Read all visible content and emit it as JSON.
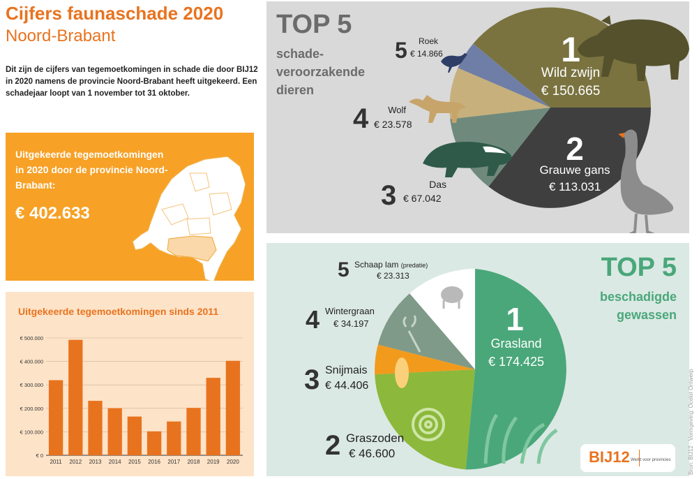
{
  "header": {
    "title": "Cijfers faunaschade 2020",
    "subtitle": "Noord-Brabant"
  },
  "intro": "Dit zijn de cijfers van tegemoetkomingen in schade die door BIJ12 in 2020 namens de provincie Noord-Brabant heeft uitgekeerd. Een schadejaar loopt van 1 november tot 31 oktober.",
  "total_box": {
    "label": "Uitgekeerde tegemoetkomingen in 2020 door de provincie Noord-Brabant:",
    "amount": "€ 402.633"
  },
  "chart_data": {
    "type": "bar",
    "title": "Uitgekeerde tegemoetkomingen sinds 2011",
    "categories": [
      "2011",
      "2012",
      "2013",
      "2014",
      "2015",
      "2016",
      "2017",
      "2018",
      "2019",
      "2020"
    ],
    "values": [
      320000,
      492000,
      232000,
      201000,
      165000,
      102000,
      144000,
      202000,
      330000,
      402633
    ],
    "ylim": [
      0,
      500000
    ],
    "yticks": [
      "€ 0",
      "€ 100.000",
      "€ 200.000",
      "€ 300.000",
      "€ 400.000",
      "€ 500.000"
    ],
    "ytick_values": [
      0,
      100000,
      200000,
      300000,
      400000,
      500000
    ],
    "color": "#e8731f"
  },
  "animals": {
    "heading": "TOP 5",
    "subheading": "schade-veroorzakende dieren",
    "items": [
      {
        "rank": "1",
        "name": "Wild zwijn",
        "amount": "€ 150.665"
      },
      {
        "rank": "2",
        "name": "Grauwe gans",
        "amount": "€ 113.031"
      },
      {
        "rank": "3",
        "name": "Das",
        "amount": "€ 67.042"
      },
      {
        "rank": "4",
        "name": "Wolf",
        "amount": "€ 23.578"
      },
      {
        "rank": "5",
        "name": "Roek",
        "amount": "€ 14.866"
      }
    ]
  },
  "crops": {
    "heading": "TOP 5",
    "subheading": "beschadigde gewassen",
    "items": [
      {
        "rank": "1",
        "name": "Grasland",
        "amount": "€ 174.425"
      },
      {
        "rank": "2",
        "name": "Graszoden",
        "amount": "€ 46.600"
      },
      {
        "rank": "3",
        "name": "Snijmais",
        "amount": "€ 44.406"
      },
      {
        "rank": "4",
        "name": "Wintergraan",
        "amount": "€ 34.197"
      },
      {
        "rank": "5",
        "name": "Schaap lam",
        "note": "(predatie)",
        "amount": "€ 23.313"
      }
    ]
  },
  "credits": "Bron: BIJ12 · Vormgeving: Ocelot Ontwerp",
  "logo": {
    "text": "BIJ12",
    "tagline": "Werkt voor provincies"
  },
  "colors": {
    "orange": "#e8731f",
    "yellow": "#f7a126",
    "green": "#4aa77a",
    "olive": "#7a7340",
    "darkgrey": "#3f3f3f",
    "boar": "#54512c"
  }
}
